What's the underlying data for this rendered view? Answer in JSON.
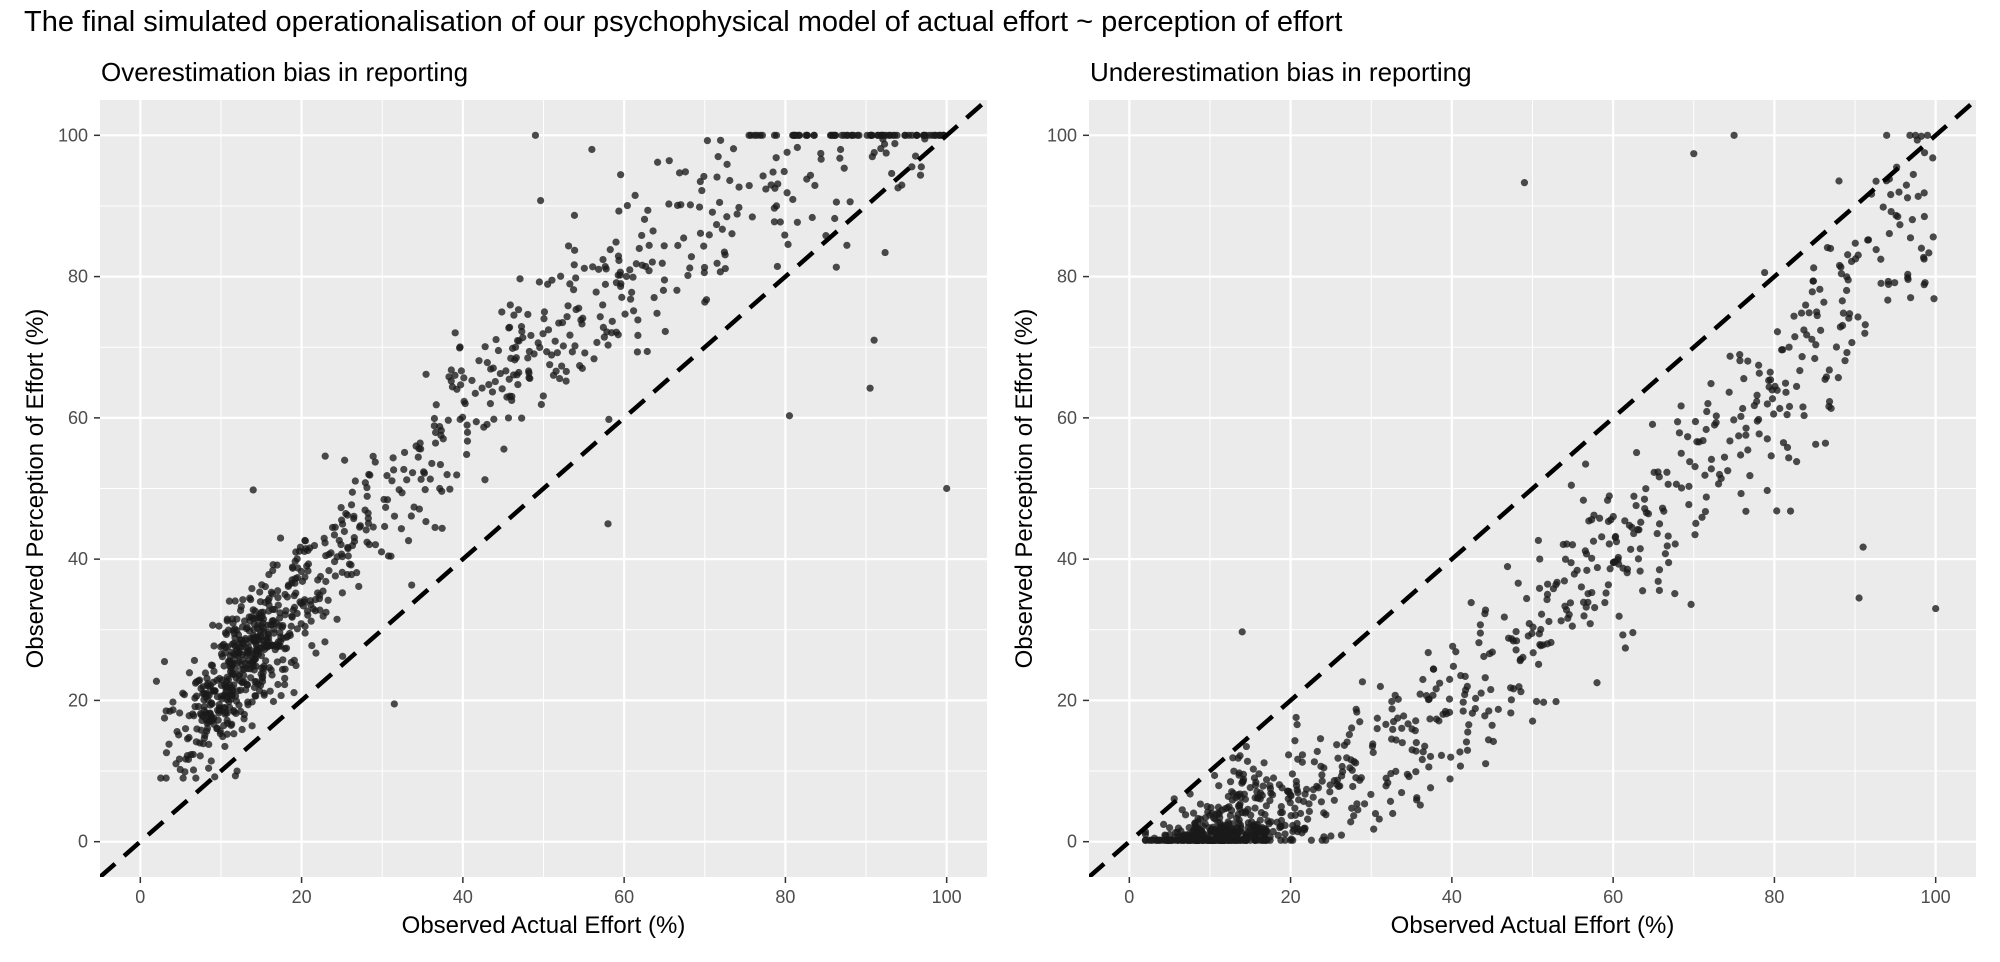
{
  "figure": {
    "title": "The final simulated operationalisation of our psychophysical model of actual effort ~ perception of effort"
  },
  "chart_data": [
    {
      "type": "scatter",
      "title": "Overestimation bias in reporting",
      "xlabel": "Observed Actual Effort (%)",
      "ylabel": "Observed Perception of Effort (%)",
      "xlim": [
        -5,
        105
      ],
      "ylim": [
        -5,
        105
      ],
      "xticks": [
        0,
        20,
        40,
        60,
        80,
        100
      ],
      "yticks": [
        0,
        20,
        40,
        60,
        80,
        100
      ],
      "grid": true,
      "reference_line": {
        "style": "dashed",
        "color": "#000000",
        "slope": 1,
        "intercept": 0
      },
      "point_color": "#1a1a1a",
      "n_points": 1000,
      "bias": "over",
      "highlighted_points": [
        {
          "x": 49,
          "y": 100
        },
        {
          "x": 56,
          "y": 98
        },
        {
          "x": 58,
          "y": 45
        },
        {
          "x": 80.5,
          "y": 60.3
        },
        {
          "x": 90.5,
          "y": 64.2
        },
        {
          "x": 91,
          "y": 71
        },
        {
          "x": 100,
          "y": 50
        },
        {
          "x": 14,
          "y": 49.8
        },
        {
          "x": 31.5,
          "y": 19.5
        },
        {
          "x": 12,
          "y": 10
        },
        {
          "x": 3,
          "y": 25.5
        },
        {
          "x": 3,
          "y": 17.5
        }
      ]
    },
    {
      "type": "scatter",
      "title": "Underestimation bias in reporting",
      "xlabel": "Observed Actual Effort (%)",
      "ylabel": "Observed Perception of Effort (%)",
      "xlim": [
        -5,
        105
      ],
      "ylim": [
        -5,
        105
      ],
      "xticks": [
        0,
        20,
        40,
        60,
        80,
        100
      ],
      "yticks": [
        0,
        20,
        40,
        60,
        80,
        100
      ],
      "grid": true,
      "reference_line": {
        "style": "dashed",
        "color": "#000000",
        "slope": 1,
        "intercept": 0
      },
      "point_color": "#1a1a1a",
      "n_points": 1000,
      "bias": "under",
      "highlighted_points": [
        {
          "x": 75,
          "y": 100
        },
        {
          "x": 70,
          "y": 97.4
        },
        {
          "x": 49,
          "y": 93.3
        },
        {
          "x": 14,
          "y": 29.7
        },
        {
          "x": 58,
          "y": 22.5
        },
        {
          "x": 90.5,
          "y": 34.5
        },
        {
          "x": 100,
          "y": 33
        },
        {
          "x": 91,
          "y": 41.7
        },
        {
          "x": 82,
          "y": 46.8
        },
        {
          "x": 31,
          "y": 3.2
        },
        {
          "x": 25,
          "y": 0.8
        },
        {
          "x": 41,
          "y": 12.7
        }
      ]
    }
  ]
}
